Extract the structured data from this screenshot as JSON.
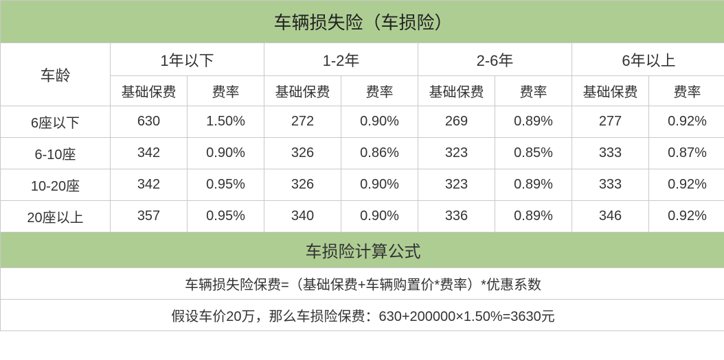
{
  "title": "车辆损失险（车损险）",
  "row_label_header": "车龄",
  "age_groups": [
    "1年以下",
    "1-2年",
    "2-6年",
    "6年以上"
  ],
  "sub_headers": [
    "基础保费",
    "费率"
  ],
  "rows": [
    {
      "label": "6座以下",
      "cells": [
        "630",
        "1.50%",
        "272",
        "0.90%",
        "269",
        "0.89%",
        "277",
        "0.92%"
      ]
    },
    {
      "label": "6-10座",
      "cells": [
        "342",
        "0.90%",
        "326",
        "0.86%",
        "323",
        "0.85%",
        "333",
        "0.87%"
      ]
    },
    {
      "label": "10-20座",
      "cells": [
        "342",
        "0.95%",
        "326",
        "0.90%",
        "323",
        "0.89%",
        "333",
        "0.92%"
      ]
    },
    {
      "label": "20座以上",
      "cells": [
        "357",
        "0.95%",
        "340",
        "0.90%",
        "336",
        "0.89%",
        "346",
        "0.92%"
      ]
    }
  ],
  "formula_title": "车损险计算公式",
  "formula_line1": "车辆损失险保费=（基础保费+车辆购置价*费率）*优惠系数",
  "formula_line2": "假设车价20万，那么车损险保费：630+200000×1.50%=3630元",
  "colors": {
    "header_bg": "#aecd93",
    "border": "#c9c9c9",
    "text": "#333333",
    "cell_bg": "#ffffff"
  }
}
